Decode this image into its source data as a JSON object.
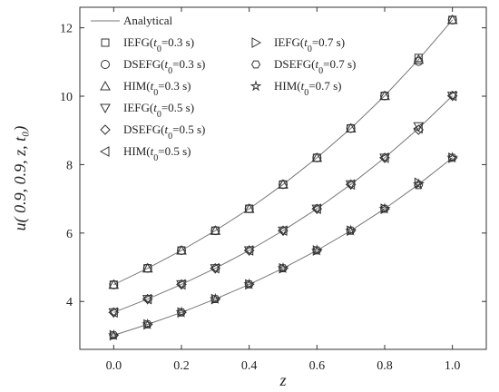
{
  "chart_data": {
    "type": "line",
    "xlabel": "z",
    "ylabel": "u( 0.9, 0.9, z, t₀)",
    "xlim": [
      -0.1,
      1.1
    ],
    "ylim": [
      2.6,
      12.6
    ],
    "x": [
      0.0,
      0.1,
      0.2,
      0.3,
      0.4,
      0.5,
      0.6,
      0.7,
      0.8,
      0.9,
      1.0
    ],
    "x_ticks": [
      "0.0",
      "0.2",
      "0.4",
      "0.6",
      "0.8",
      "1.0"
    ],
    "y_ticks": [
      "4",
      "6",
      "8",
      "10",
      "12"
    ],
    "analytical": {
      "name": "Analytical",
      "curves": [
        {
          "t0": "0.3",
          "values": [
            4.49,
            4.97,
            5.49,
            6.07,
            6.71,
            7.42,
            8.2,
            9.06,
            10.01,
            11.07,
            12.23
          ]
        },
        {
          "t0": "0.5",
          "values": [
            3.68,
            4.07,
            4.5,
            4.97,
            5.49,
            6.07,
            6.71,
            7.42,
            8.2,
            9.06,
            10.01
          ]
        },
        {
          "t0": "0.7",
          "values": [
            3.01,
            3.33,
            3.68,
            4.07,
            4.5,
            4.97,
            5.49,
            6.07,
            6.71,
            7.42,
            8.2
          ]
        }
      ]
    },
    "series": [
      {
        "method": "IEFG",
        "t0": "0.3",
        "marker": "square",
        "values": [
          4.49,
          4.97,
          5.49,
          6.07,
          6.71,
          7.42,
          8.2,
          9.06,
          10.01,
          11.12,
          12.23
        ]
      },
      {
        "method": "DSEFG",
        "t0": "0.3",
        "marker": "circle",
        "values": [
          4.49,
          4.97,
          5.49,
          6.07,
          6.71,
          7.42,
          8.2,
          9.06,
          10.01,
          11.02,
          12.23
        ]
      },
      {
        "method": "HIM",
        "t0": "0.3",
        "marker": "triangle-up",
        "values": [
          4.49,
          4.97,
          5.49,
          6.07,
          6.71,
          7.42,
          8.2,
          9.06,
          10.01,
          11.07,
          12.23
        ]
      },
      {
        "method": "IEFG",
        "t0": "0.5",
        "marker": "triangle-down",
        "values": [
          3.68,
          4.07,
          4.5,
          4.97,
          5.49,
          6.07,
          6.71,
          7.42,
          8.2,
          9.12,
          10.01
        ]
      },
      {
        "method": "DSEFG",
        "t0": "0.5",
        "marker": "diamond",
        "values": [
          3.68,
          4.07,
          4.5,
          4.97,
          5.49,
          6.07,
          6.71,
          7.42,
          8.2,
          9.02,
          10.01
        ]
      },
      {
        "method": "HIM",
        "t0": "0.5",
        "marker": "triangle-left",
        "values": [
          3.68,
          4.07,
          4.5,
          4.97,
          5.49,
          6.07,
          6.71,
          7.42,
          8.2,
          9.06,
          10.01
        ]
      },
      {
        "method": "IEFG",
        "t0": "0.7",
        "marker": "triangle-right",
        "values": [
          3.01,
          3.33,
          3.68,
          4.07,
          4.5,
          4.97,
          5.49,
          6.07,
          6.71,
          7.47,
          8.2
        ]
      },
      {
        "method": "DSEFG",
        "t0": "0.7",
        "marker": "hexagon",
        "values": [
          3.01,
          3.33,
          3.68,
          4.07,
          4.5,
          4.97,
          5.49,
          6.07,
          6.71,
          7.4,
          8.2
        ]
      },
      {
        "method": "HIM",
        "t0": "0.7",
        "marker": "star",
        "values": [
          3.01,
          3.33,
          3.68,
          4.07,
          4.5,
          4.97,
          5.49,
          6.07,
          6.71,
          7.42,
          8.2
        ]
      }
    ],
    "legend_position": "top-left",
    "grid": false
  }
}
